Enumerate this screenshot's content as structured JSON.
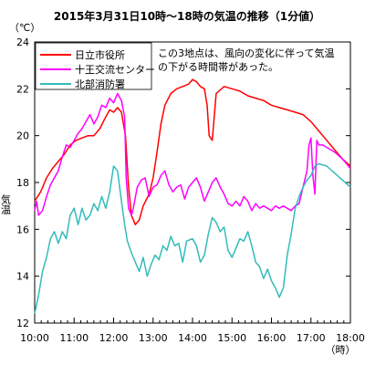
{
  "chart_data": {
    "type": "line",
    "title": "2015年3月31日10時～18時の気温の推移（1分値）",
    "ylabel": "気温",
    "yunit": "（℃）",
    "xunit": "（時）",
    "ylim": [
      12,
      24
    ],
    "yticks": [
      12,
      14,
      16,
      18,
      20,
      22,
      24
    ],
    "xticks": [
      {
        "hour": 10,
        "label": "10:00"
      },
      {
        "hour": 11,
        "label": "11:00"
      },
      {
        "hour": 12,
        "label": "12:00"
      },
      {
        "hour": 13,
        "label": "13:00"
      },
      {
        "hour": 14,
        "label": "14:00"
      },
      {
        "hour": 15,
        "label": "15:00"
      },
      {
        "hour": 16,
        "label": "16:00"
      },
      {
        "hour": 17,
        "label": "17:00"
      },
      {
        "hour": 18,
        "label": "18:00"
      }
    ],
    "xlim": [
      10,
      18
    ],
    "grid": false,
    "legend_position": "top-left",
    "annotation": [
      "この3地点は、風向の変化に伴って気温",
      "の下がる時間帯があった。"
    ],
    "series": [
      {
        "name": "日立市役所",
        "color": "#ff0000",
        "points": [
          [
            10.0,
            17.2
          ],
          [
            10.15,
            17.6
          ],
          [
            10.3,
            18.2
          ],
          [
            10.45,
            18.6
          ],
          [
            10.6,
            18.9
          ],
          [
            10.75,
            19.2
          ],
          [
            10.9,
            19.6
          ],
          [
            11.05,
            19.8
          ],
          [
            11.2,
            19.9
          ],
          [
            11.35,
            20.0
          ],
          [
            11.5,
            20.0
          ],
          [
            11.65,
            20.3
          ],
          [
            11.8,
            20.8
          ],
          [
            11.9,
            21.1
          ],
          [
            12.0,
            21.0
          ],
          [
            12.1,
            21.2
          ],
          [
            12.2,
            21.0
          ],
          [
            12.3,
            20.0
          ],
          [
            12.38,
            17.8
          ],
          [
            12.45,
            16.6
          ],
          [
            12.55,
            16.2
          ],
          [
            12.65,
            16.4
          ],
          [
            12.75,
            17.0
          ],
          [
            12.9,
            17.5
          ],
          [
            13.0,
            18.2
          ],
          [
            13.1,
            19.3
          ],
          [
            13.2,
            20.5
          ],
          [
            13.3,
            21.3
          ],
          [
            13.45,
            21.8
          ],
          [
            13.6,
            22.0
          ],
          [
            13.75,
            22.1
          ],
          [
            13.9,
            22.2
          ],
          [
            14.0,
            22.4
          ],
          [
            14.1,
            22.3
          ],
          [
            14.2,
            22.1
          ],
          [
            14.3,
            22.0
          ],
          [
            14.37,
            21.3
          ],
          [
            14.42,
            20.0
          ],
          [
            14.5,
            19.8
          ],
          [
            14.6,
            21.8
          ],
          [
            14.8,
            22.1
          ],
          [
            15.0,
            22.0
          ],
          [
            15.2,
            21.9
          ],
          [
            15.4,
            21.7
          ],
          [
            15.6,
            21.6
          ],
          [
            15.8,
            21.5
          ],
          [
            16.0,
            21.3
          ],
          [
            16.2,
            21.2
          ],
          [
            16.4,
            21.1
          ],
          [
            16.6,
            21.0
          ],
          [
            16.8,
            20.9
          ],
          [
            17.0,
            20.6
          ],
          [
            17.2,
            20.2
          ],
          [
            17.4,
            19.8
          ],
          [
            17.6,
            19.4
          ],
          [
            17.8,
            19.0
          ],
          [
            18.0,
            18.7
          ]
        ]
      },
      {
        "name": "十王交流センター",
        "color": "#ff00ff",
        "points": [
          [
            10.0,
            16.8
          ],
          [
            10.05,
            17.2
          ],
          [
            10.1,
            16.6
          ],
          [
            10.2,
            16.8
          ],
          [
            10.3,
            17.4
          ],
          [
            10.4,
            17.9
          ],
          [
            10.5,
            18.2
          ],
          [
            10.6,
            18.5
          ],
          [
            10.7,
            19.1
          ],
          [
            10.8,
            19.6
          ],
          [
            10.9,
            19.5
          ],
          [
            11.0,
            19.8
          ],
          [
            11.1,
            20.1
          ],
          [
            11.2,
            20.3
          ],
          [
            11.3,
            20.6
          ],
          [
            11.4,
            20.9
          ],
          [
            11.5,
            20.5
          ],
          [
            11.6,
            20.8
          ],
          [
            11.7,
            21.3
          ],
          [
            11.8,
            21.2
          ],
          [
            11.9,
            21.6
          ],
          [
            12.0,
            21.4
          ],
          [
            12.1,
            21.8
          ],
          [
            12.2,
            21.5
          ],
          [
            12.28,
            20.8
          ],
          [
            12.32,
            18.2
          ],
          [
            12.38,
            16.9
          ],
          [
            12.45,
            16.6
          ],
          [
            12.5,
            16.9
          ],
          [
            12.6,
            17.8
          ],
          [
            12.7,
            18.1
          ],
          [
            12.8,
            18.2
          ],
          [
            12.9,
            17.4
          ],
          [
            13.0,
            17.8
          ],
          [
            13.1,
            17.9
          ],
          [
            13.2,
            18.3
          ],
          [
            13.3,
            18.5
          ],
          [
            13.4,
            17.9
          ],
          [
            13.5,
            17.6
          ],
          [
            13.6,
            17.8
          ],
          [
            13.7,
            17.9
          ],
          [
            13.8,
            17.3
          ],
          [
            13.9,
            17.8
          ],
          [
            14.0,
            18.0
          ],
          [
            14.1,
            18.2
          ],
          [
            14.2,
            17.8
          ],
          [
            14.3,
            17.2
          ],
          [
            14.4,
            17.6
          ],
          [
            14.5,
            18.0
          ],
          [
            14.6,
            18.2
          ],
          [
            14.7,
            17.8
          ],
          [
            14.8,
            17.5
          ],
          [
            14.9,
            17.1
          ],
          [
            15.0,
            17.0
          ],
          [
            15.1,
            17.2
          ],
          [
            15.2,
            17.0
          ],
          [
            15.3,
            17.4
          ],
          [
            15.4,
            17.2
          ],
          [
            15.5,
            16.8
          ],
          [
            15.6,
            17.1
          ],
          [
            15.7,
            16.9
          ],
          [
            15.8,
            17.0
          ],
          [
            15.9,
            16.9
          ],
          [
            16.0,
            16.8
          ],
          [
            16.1,
            17.0
          ],
          [
            16.2,
            16.9
          ],
          [
            16.3,
            17.0
          ],
          [
            16.4,
            16.9
          ],
          [
            16.5,
            16.8
          ],
          [
            16.6,
            17.0
          ],
          [
            16.7,
            17.1
          ],
          [
            16.8,
            17.8
          ],
          [
            16.9,
            18.5
          ],
          [
            16.95,
            19.6
          ],
          [
            17.0,
            19.9
          ],
          [
            17.05,
            18.3
          ],
          [
            17.1,
            17.5
          ],
          [
            17.15,
            19.8
          ],
          [
            17.2,
            19.6
          ],
          [
            17.3,
            19.6
          ],
          [
            17.4,
            19.5
          ],
          [
            17.6,
            19.3
          ],
          [
            17.8,
            19.0
          ],
          [
            18.0,
            18.6
          ]
        ]
      },
      {
        "name": "北部消防署",
        "color": "#33bbbb",
        "points": [
          [
            10.0,
            12.4
          ],
          [
            10.1,
            13.2
          ],
          [
            10.2,
            14.2
          ],
          [
            10.3,
            14.8
          ],
          [
            10.4,
            15.6
          ],
          [
            10.5,
            15.9
          ],
          [
            10.6,
            15.4
          ],
          [
            10.7,
            15.9
          ],
          [
            10.8,
            15.6
          ],
          [
            10.9,
            16.6
          ],
          [
            11.0,
            16.9
          ],
          [
            11.1,
            16.2
          ],
          [
            11.2,
            16.9
          ],
          [
            11.3,
            16.4
          ],
          [
            11.4,
            16.6
          ],
          [
            11.5,
            17.1
          ],
          [
            11.6,
            16.8
          ],
          [
            11.7,
            17.4
          ],
          [
            11.8,
            16.9
          ],
          [
            11.9,
            17.6
          ],
          [
            12.0,
            18.7
          ],
          [
            12.1,
            18.5
          ],
          [
            12.2,
            17.2
          ],
          [
            12.28,
            16.2
          ],
          [
            12.35,
            15.5
          ],
          [
            12.45,
            15.0
          ],
          [
            12.55,
            14.6
          ],
          [
            12.65,
            14.2
          ],
          [
            12.75,
            14.8
          ],
          [
            12.85,
            14.0
          ],
          [
            12.95,
            14.5
          ],
          [
            13.05,
            14.9
          ],
          [
            13.15,
            14.7
          ],
          [
            13.25,
            15.3
          ],
          [
            13.35,
            15.1
          ],
          [
            13.45,
            15.7
          ],
          [
            13.55,
            15.3
          ],
          [
            13.65,
            15.4
          ],
          [
            13.75,
            14.6
          ],
          [
            13.85,
            15.5
          ],
          [
            14.0,
            15.6
          ],
          [
            14.1,
            15.3
          ],
          [
            14.2,
            14.6
          ],
          [
            14.3,
            14.9
          ],
          [
            14.4,
            15.8
          ],
          [
            14.5,
            16.5
          ],
          [
            14.6,
            16.3
          ],
          [
            14.7,
            15.9
          ],
          [
            14.8,
            16.1
          ],
          [
            14.9,
            15.1
          ],
          [
            15.0,
            14.8
          ],
          [
            15.1,
            15.2
          ],
          [
            15.2,
            15.6
          ],
          [
            15.3,
            15.5
          ],
          [
            15.4,
            15.9
          ],
          [
            15.5,
            15.3
          ],
          [
            15.6,
            14.6
          ],
          [
            15.7,
            14.4
          ],
          [
            15.8,
            13.9
          ],
          [
            15.9,
            14.3
          ],
          [
            16.0,
            13.8
          ],
          [
            16.1,
            13.5
          ],
          [
            16.2,
            13.1
          ],
          [
            16.3,
            13.5
          ],
          [
            16.4,
            14.9
          ],
          [
            16.5,
            15.8
          ],
          [
            16.6,
            16.9
          ],
          [
            16.7,
            17.4
          ],
          [
            16.8,
            17.8
          ],
          [
            16.9,
            18.1
          ],
          [
            17.0,
            18.3
          ],
          [
            17.1,
            18.7
          ],
          [
            17.2,
            18.8
          ],
          [
            17.4,
            18.7
          ],
          [
            17.6,
            18.4
          ],
          [
            17.8,
            18.1
          ],
          [
            18.0,
            17.8
          ]
        ]
      }
    ]
  }
}
